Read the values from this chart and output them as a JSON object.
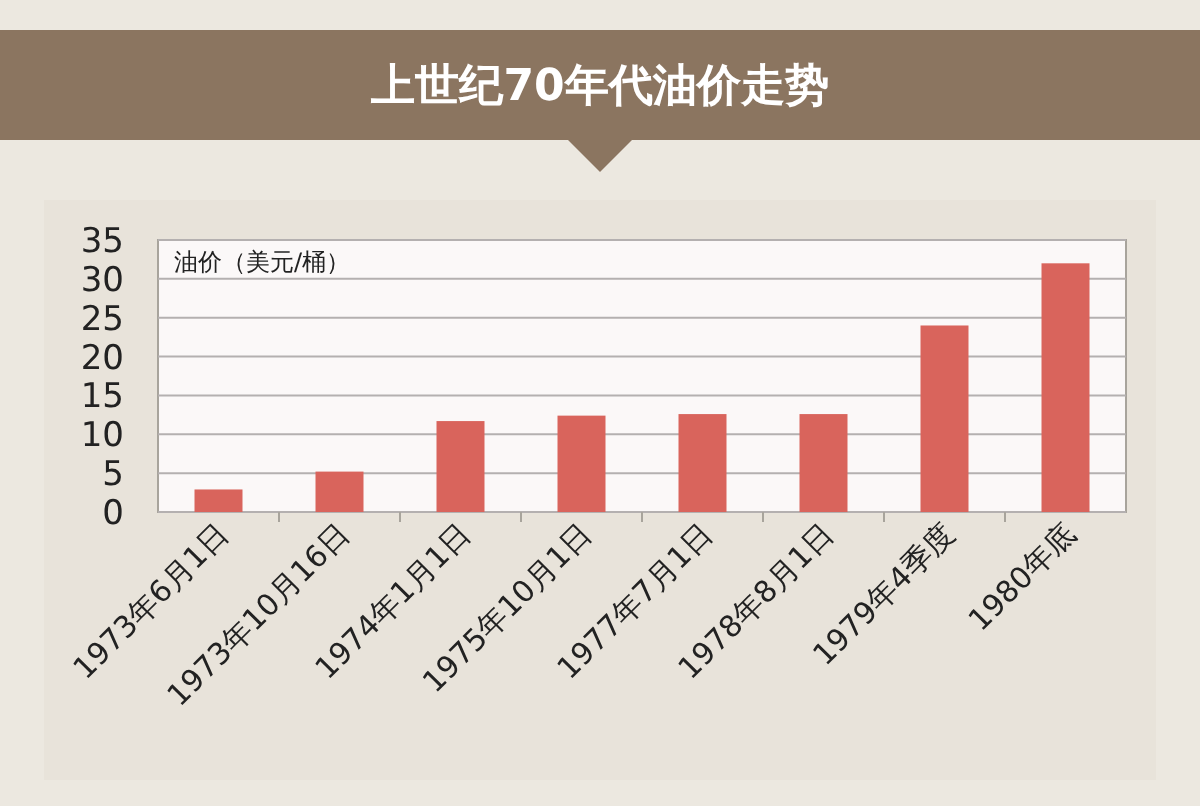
{
  "chart_data": {
    "type": "bar",
    "title": "上世纪70年代油价走势",
    "ylabel": "油价（美元/桶）",
    "categories": [
      "1973年6月1日",
      "1973年10月16日",
      "1974年1月1日",
      "1975年10月1日",
      "1977年7月1日",
      "1978年8月1日",
      "1979年4季度",
      "1980年底"
    ],
    "values": [
      2.9,
      5.2,
      11.7,
      12.4,
      12.6,
      12.6,
      24,
      32
    ],
    "color": "#d9645c",
    "ylim": [
      0,
      35
    ],
    "yticks": [
      0,
      5,
      10,
      15,
      20,
      25,
      30,
      35
    ],
    "grid": "y"
  }
}
